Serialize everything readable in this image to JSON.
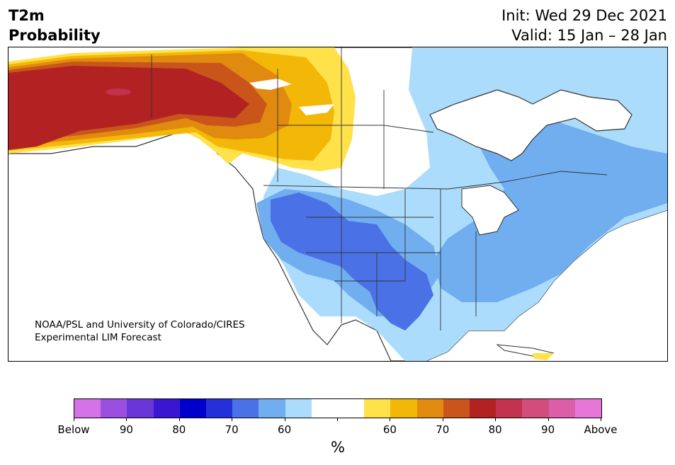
{
  "header": {
    "title_line1": "T2m",
    "title_line2": "Probability",
    "init": "Init: Wed 29 Dec 2021",
    "valid": "Valid: 15 Jan – 28 Jan"
  },
  "credit": {
    "line1": "NOAA/PSL and University of Colorado/CIRES",
    "line2": "Experimental LIM Forecast"
  },
  "colorbar": {
    "colors": [
      "#d572e8",
      "#9b4fe0",
      "#6a35d6",
      "#3a16d3",
      "#0000cc",
      "#2530da",
      "#4a72e6",
      "#70aef0",
      "#acdcfb",
      "#ffffff",
      "#ffffff",
      "#ffe14a",
      "#f2b707",
      "#e08a10",
      "#c9551a",
      "#b22222",
      "#c2314d",
      "#d24d7c",
      "#dc5da8",
      "#e677d8"
    ],
    "labels": [
      "Below",
      "90",
      "80",
      "70",
      "60",
      "",
      "60",
      "70",
      "80",
      "90",
      "Above"
    ],
    "unit": "%"
  },
  "map": {
    "category_colors": {
      "above_90": "#b22222",
      "above_80": "#c9551a",
      "above_70": "#e08a10",
      "above_60": "#f2b707",
      "above_50": "#ffe14a",
      "below_50": "#acdcfb",
      "below_60": "#70aef0",
      "below_70": "#4a72e6"
    }
  }
}
